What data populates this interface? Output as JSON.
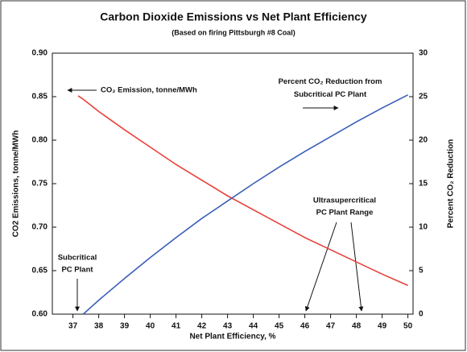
{
  "chart_data": {
    "type": "line",
    "title": "Carbon Dioxide Emissions vs Net Plant Efficiency",
    "subtitle": "(Based on firing Pittsburgh #8 Coal)",
    "x_label": "Net Plant Efficiency, %",
    "y_label": "CO2 Emissions, tonne/MWh",
    "y2_label": "Percent CO₂ Reduction",
    "x": [
      37.2,
      37.4,
      38,
      39,
      40,
      41,
      42,
      43,
      44,
      45,
      46,
      47,
      48,
      49,
      50
    ],
    "series": [
      {
        "name": "CO₂ Emission, tonne/MWh",
        "color": "#e8413a",
        "values": [
          0.851,
          0.847,
          0.833,
          0.812,
          0.792,
          0.772,
          0.754,
          0.736,
          0.72,
          0.704,
          0.688,
          0.674,
          0.66,
          0.646,
          0.633
        ]
      },
      {
        "name": "Percent CO₂ Reduction from Subcritical PC Plant",
        "color": "#3a5fb8",
        "axis": "y2",
        "values": [
          null,
          0,
          1.6,
          4.1,
          6.5,
          8.8,
          11.0,
          13.0,
          15.0,
          16.9,
          18.7,
          20.4,
          22.1,
          23.7,
          25.2
        ]
      }
    ],
    "annotations": [
      {
        "lines": [
          "Subcritical",
          "PC Plant"
        ]
      },
      {
        "lines": [
          "Ultrasupercritical",
          "PC Plant Range"
        ]
      }
    ],
    "xlim": [
      36.2,
      50.2
    ],
    "xticks": [
      37,
      38,
      39,
      40,
      41,
      42,
      43,
      44,
      45,
      46,
      47,
      48,
      49,
      50
    ],
    "ylim": [
      0.6,
      0.9
    ],
    "yticks": [
      {
        "value": 0.6,
        "label": "0.60"
      },
      {
        "value": 0.65,
        "label": "0.65"
      },
      {
        "value": 0.7,
        "label": "0.70"
      },
      {
        "value": 0.75,
        "label": "0.75"
      },
      {
        "value": 0.8,
        "label": "0.80"
      },
      {
        "value": 0.85,
        "label": "0.85"
      },
      {
        "value": 0.9,
        "label": "0.90"
      }
    ],
    "y2lim": [
      0,
      30
    ],
    "y2ticks": [
      0,
      5,
      10,
      15,
      20,
      25,
      30
    ]
  }
}
